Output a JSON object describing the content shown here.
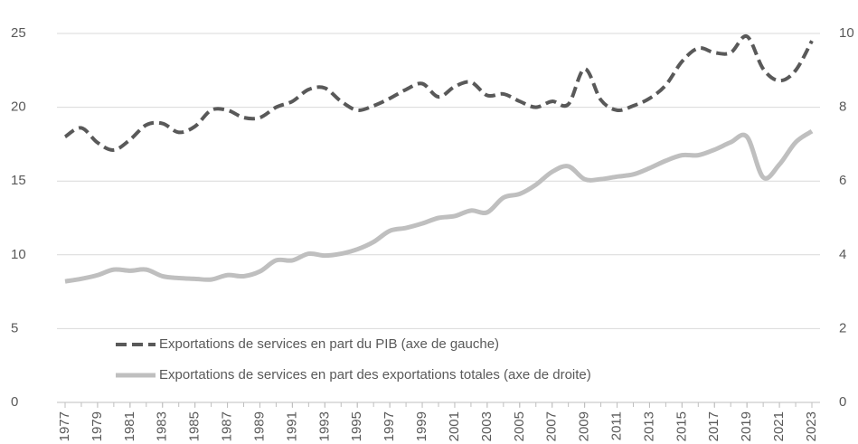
{
  "chart_data": {
    "type": "line",
    "x": [
      1977,
      1978,
      1979,
      1980,
      1981,
      1982,
      1983,
      1984,
      1985,
      1986,
      1987,
      1988,
      1989,
      1990,
      1991,
      1992,
      1993,
      1994,
      1995,
      1996,
      1997,
      1998,
      1999,
      2000,
      2001,
      2002,
      2003,
      2004,
      2005,
      2006,
      2007,
      2008,
      2009,
      2010,
      2011,
      2012,
      2013,
      2014,
      2015,
      2016,
      2017,
      2018,
      2019,
      2020,
      2021,
      2022,
      2023
    ],
    "xlim": [
      1977,
      2023
    ],
    "xticks": [
      1977,
      1979,
      1981,
      1983,
      1985,
      1987,
      1989,
      1991,
      1993,
      1995,
      1997,
      1999,
      2001,
      2003,
      2005,
      2007,
      2009,
      2011,
      2013,
      2015,
      2017,
      2019,
      2021,
      2023
    ],
    "ylim": [
      0,
      25
    ],
    "yticks": [
      0,
      5,
      10,
      15,
      20,
      25
    ],
    "y2lim": [
      0,
      10
    ],
    "y2ticks": [
      0,
      2,
      4,
      6,
      8,
      10
    ],
    "grid": true,
    "series": [
      {
        "name": "Exportations de services en part du PIB (axe de gauche)",
        "color": "#595959",
        "dashed": true,
        "axis": "y",
        "values": [
          18.0,
          18.6,
          17.6,
          17.1,
          17.8,
          18.8,
          18.9,
          18.3,
          18.7,
          19.8,
          19.8,
          19.3,
          19.3,
          20.0,
          20.4,
          21.2,
          21.3,
          20.4,
          19.8,
          20.1,
          20.6,
          21.2,
          21.6,
          20.7,
          21.4,
          21.7,
          20.8,
          20.9,
          20.4,
          20.0,
          20.4,
          20.2,
          22.6,
          20.5,
          19.8,
          20.1,
          20.6,
          21.5,
          23.1,
          24.0,
          23.7,
          23.7,
          24.8,
          22.6,
          21.8,
          22.5,
          24.5
        ]
      },
      {
        "name": "Exportations de services en part des exportations totales (axe de droite)",
        "color": "#bfbfbf",
        "dashed": false,
        "axis": "y2",
        "values": [
          3.28,
          3.35,
          3.45,
          3.6,
          3.57,
          3.6,
          3.42,
          3.37,
          3.35,
          3.33,
          3.45,
          3.42,
          3.55,
          3.85,
          3.85,
          4.03,
          3.98,
          4.03,
          4.15,
          4.35,
          4.65,
          4.73,
          4.85,
          5.0,
          5.05,
          5.2,
          5.15,
          5.55,
          5.65,
          5.9,
          6.25,
          6.4,
          6.05,
          6.05,
          6.12,
          6.18,
          6.35,
          6.55,
          6.7,
          6.7,
          6.85,
          7.05,
          7.2,
          6.1,
          6.45,
          7.05,
          7.35
        ]
      }
    ]
  }
}
